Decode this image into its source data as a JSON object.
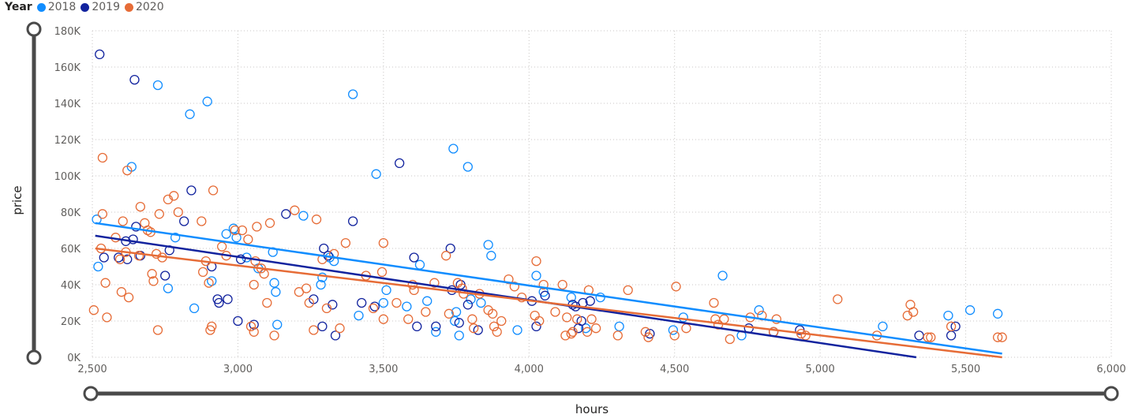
{
  "legend": {
    "title": "Year",
    "items": [
      {
        "label": "2018",
        "color": "#118DFF"
      },
      {
        "label": "2019",
        "color": "#12239E"
      },
      {
        "label": "2020",
        "color": "#E66C37"
      }
    ]
  },
  "chart_data": {
    "type": "scatter",
    "title": "",
    "xlabel": "hours",
    "ylabel": "price",
    "xlim": [
      2500,
      6000
    ],
    "ylim": [
      0,
      180000
    ],
    "x_ticks": [
      2500,
      3000,
      3500,
      4000,
      4500,
      5000,
      5500,
      6000
    ],
    "x_tick_labels": [
      "2,500",
      "3,000",
      "3,500",
      "4,000",
      "4,500",
      "5,000",
      "5,500",
      "6,000"
    ],
    "y_ticks": [
      0,
      20000,
      40000,
      60000,
      80000,
      100000,
      120000,
      140000,
      160000,
      180000
    ],
    "y_tick_labels": [
      "0K",
      "20K",
      "40K",
      "60K",
      "80K",
      "100K",
      "120K",
      "140K",
      "160K",
      "180K"
    ],
    "grid": true,
    "legend_position": "top-left",
    "marker": "hollow-circle",
    "series": [
      {
        "name": "2018",
        "color": "#118DFF",
        "points": [
          [
            2515,
            76000
          ],
          [
            2520,
            50000
          ],
          [
            2635,
            105000
          ],
          [
            2725,
            150000
          ],
          [
            2760,
            38000
          ],
          [
            2785,
            66000
          ],
          [
            2835,
            134000
          ],
          [
            2850,
            27000
          ],
          [
            2895,
            141000
          ],
          [
            2910,
            42000
          ],
          [
            2960,
            68000
          ],
          [
            2985,
            71000
          ],
          [
            2995,
            66000
          ],
          [
            3030,
            55000
          ],
          [
            3070,
            49000
          ],
          [
            3120,
            58000
          ],
          [
            3125,
            41000
          ],
          [
            3130,
            36000
          ],
          [
            3135,
            18000
          ],
          [
            3225,
            78000
          ],
          [
            3285,
            40000
          ],
          [
            3290,
            44000
          ],
          [
            3315,
            55000
          ],
          [
            3330,
            53000
          ],
          [
            3395,
            145000
          ],
          [
            3415,
            23000
          ],
          [
            3475,
            101000
          ],
          [
            3500,
            30000
          ],
          [
            3510,
            37000
          ],
          [
            3580,
            28000
          ],
          [
            3625,
            51000
          ],
          [
            3650,
            31000
          ],
          [
            3680,
            14000
          ],
          [
            3740,
            115000
          ],
          [
            3745,
            20000
          ],
          [
            3750,
            25000
          ],
          [
            3760,
            12000
          ],
          [
            3790,
            105000
          ],
          [
            3800,
            32000
          ],
          [
            3835,
            30000
          ],
          [
            3860,
            62000
          ],
          [
            3870,
            56000
          ],
          [
            3960,
            15000
          ],
          [
            4025,
            45000
          ],
          [
            4050,
            36000
          ],
          [
            4145,
            33000
          ],
          [
            4195,
            16000
          ],
          [
            4245,
            33000
          ],
          [
            4310,
            17000
          ],
          [
            4495,
            15000
          ],
          [
            4530,
            22000
          ],
          [
            4665,
            45000
          ],
          [
            4730,
            12000
          ],
          [
            4790,
            26000
          ],
          [
            5215,
            17000
          ],
          [
            5440,
            23000
          ],
          [
            5515,
            26000
          ],
          [
            5610,
            24000
          ]
        ]
      },
      {
        "name": "2019",
        "color": "#12239E",
        "points": [
          [
            2525,
            167000
          ],
          [
            2540,
            55000
          ],
          [
            2590,
            55000
          ],
          [
            2615,
            64000
          ],
          [
            2620,
            54000
          ],
          [
            2640,
            65000
          ],
          [
            2645,
            153000
          ],
          [
            2650,
            72000
          ],
          [
            2665,
            56000
          ],
          [
            2750,
            45000
          ],
          [
            2765,
            59000
          ],
          [
            2815,
            75000
          ],
          [
            2840,
            92000
          ],
          [
            2910,
            50000
          ],
          [
            2930,
            32000
          ],
          [
            2935,
            30000
          ],
          [
            2965,
            32000
          ],
          [
            3000,
            20000
          ],
          [
            3010,
            54000
          ],
          [
            3055,
            18000
          ],
          [
            3165,
            79000
          ],
          [
            3260,
            32000
          ],
          [
            3290,
            17000
          ],
          [
            3295,
            60000
          ],
          [
            3310,
            56000
          ],
          [
            3325,
            29000
          ],
          [
            3335,
            12000
          ],
          [
            3395,
            75000
          ],
          [
            3425,
            30000
          ],
          [
            3470,
            28000
          ],
          [
            3555,
            107000
          ],
          [
            3605,
            55000
          ],
          [
            3615,
            17000
          ],
          [
            3680,
            17000
          ],
          [
            3730,
            60000
          ],
          [
            3735,
            37000
          ],
          [
            3760,
            19000
          ],
          [
            3765,
            40000
          ],
          [
            3790,
            29000
          ],
          [
            3825,
            15000
          ],
          [
            4010,
            31000
          ],
          [
            4025,
            17000
          ],
          [
            4055,
            34000
          ],
          [
            4150,
            29000
          ],
          [
            4160,
            28000
          ],
          [
            4170,
            16000
          ],
          [
            4180,
            20000
          ],
          [
            4185,
            30000
          ],
          [
            4210,
            31000
          ],
          [
            4415,
            13000
          ],
          [
            4755,
            16000
          ],
          [
            4840,
            14000
          ],
          [
            4930,
            15000
          ],
          [
            5340,
            12000
          ],
          [
            5450,
            12000
          ],
          [
            5465,
            17000
          ]
        ]
      },
      {
        "name": "2020",
        "color": "#E66C37",
        "points": [
          [
            2505,
            26000
          ],
          [
            2530,
            60000
          ],
          [
            2535,
            79000
          ],
          [
            2535,
            110000
          ],
          [
            2545,
            41000
          ],
          [
            2550,
            22000
          ],
          [
            2580,
            66000
          ],
          [
            2595,
            54000
          ],
          [
            2600,
            36000
          ],
          [
            2605,
            75000
          ],
          [
            2615,
            58000
          ],
          [
            2620,
            103000
          ],
          [
            2625,
            33000
          ],
          [
            2660,
            56000
          ],
          [
            2665,
            83000
          ],
          [
            2680,
            74000
          ],
          [
            2690,
            70000
          ],
          [
            2700,
            69000
          ],
          [
            2705,
            46000
          ],
          [
            2710,
            42000
          ],
          [
            2720,
            57000
          ],
          [
            2725,
            15000
          ],
          [
            2730,
            79000
          ],
          [
            2740,
            55000
          ],
          [
            2760,
            87000
          ],
          [
            2780,
            89000
          ],
          [
            2795,
            80000
          ],
          [
            2875,
            75000
          ],
          [
            2880,
            47000
          ],
          [
            2890,
            53000
          ],
          [
            2900,
            41000
          ],
          [
            2905,
            15000
          ],
          [
            2910,
            17000
          ],
          [
            2915,
            92000
          ],
          [
            2945,
            61000
          ],
          [
            2960,
            56000
          ],
          [
            2990,
            70000
          ],
          [
            3015,
            70000
          ],
          [
            3035,
            65000
          ],
          [
            3045,
            17000
          ],
          [
            3055,
            40000
          ],
          [
            3055,
            14000
          ],
          [
            3060,
            53000
          ],
          [
            3065,
            72000
          ],
          [
            3080,
            49000
          ],
          [
            3090,
            46000
          ],
          [
            3100,
            30000
          ],
          [
            3110,
            74000
          ],
          [
            3125,
            12000
          ],
          [
            3195,
            81000
          ],
          [
            3210,
            36000
          ],
          [
            3235,
            38000
          ],
          [
            3245,
            30000
          ],
          [
            3260,
            15000
          ],
          [
            3270,
            76000
          ],
          [
            3290,
            54000
          ],
          [
            3305,
            27000
          ],
          [
            3330,
            57000
          ],
          [
            3350,
            16000
          ],
          [
            3370,
            63000
          ],
          [
            3440,
            45000
          ],
          [
            3465,
            27000
          ],
          [
            3495,
            47000
          ],
          [
            3500,
            63000
          ],
          [
            3500,
            21000
          ],
          [
            3545,
            30000
          ],
          [
            3585,
            21000
          ],
          [
            3600,
            40000
          ],
          [
            3605,
            37000
          ],
          [
            3645,
            25000
          ],
          [
            3675,
            41000
          ],
          [
            3715,
            56000
          ],
          [
            3725,
            24000
          ],
          [
            3755,
            41000
          ],
          [
            3770,
            38000
          ],
          [
            3775,
            35000
          ],
          [
            3805,
            21000
          ],
          [
            3810,
            16000
          ],
          [
            3830,
            35000
          ],
          [
            3860,
            26000
          ],
          [
            3875,
            24000
          ],
          [
            3880,
            17000
          ],
          [
            3890,
            14000
          ],
          [
            3905,
            20000
          ],
          [
            3930,
            43000
          ],
          [
            3950,
            39000
          ],
          [
            3975,
            33000
          ],
          [
            4020,
            23000
          ],
          [
            4025,
            53000
          ],
          [
            4035,
            20000
          ],
          [
            4050,
            40000
          ],
          [
            4090,
            25000
          ],
          [
            4115,
            40000
          ],
          [
            4125,
            12000
          ],
          [
            4130,
            22000
          ],
          [
            4145,
            13000
          ],
          [
            4150,
            14000
          ],
          [
            4165,
            21000
          ],
          [
            4200,
            14000
          ],
          [
            4205,
            37000
          ],
          [
            4215,
            21000
          ],
          [
            4230,
            16000
          ],
          [
            4305,
            12000
          ],
          [
            4340,
            37000
          ],
          [
            4400,
            14000
          ],
          [
            4410,
            11000
          ],
          [
            4500,
            12000
          ],
          [
            4505,
            39000
          ],
          [
            4540,
            16000
          ],
          [
            4635,
            30000
          ],
          [
            4640,
            21000
          ],
          [
            4650,
            18000
          ],
          [
            4670,
            21000
          ],
          [
            4690,
            10000
          ],
          [
            4760,
            22000
          ],
          [
            4800,
            23000
          ],
          [
            4840,
            14000
          ],
          [
            4850,
            21000
          ],
          [
            4935,
            13000
          ],
          [
            4950,
            12000
          ],
          [
            5060,
            32000
          ],
          [
            5195,
            12000
          ],
          [
            5300,
            23000
          ],
          [
            5310,
            29000
          ],
          [
            5320,
            25000
          ],
          [
            5370,
            11000
          ],
          [
            5380,
            11000
          ],
          [
            5450,
            17000
          ],
          [
            5610,
            11000
          ],
          [
            5625,
            11000
          ]
        ]
      }
    ],
    "trend_lines": [
      {
        "series": "2018",
        "x": [
          2510,
          5625
        ],
        "y": [
          74000,
          2000
        ]
      },
      {
        "series": "2019",
        "x": [
          2510,
          5330
        ],
        "y": [
          67000,
          0
        ]
      },
      {
        "series": "2020",
        "x": [
          2510,
          5625
        ],
        "y": [
          60000,
          0
        ]
      }
    ]
  }
}
